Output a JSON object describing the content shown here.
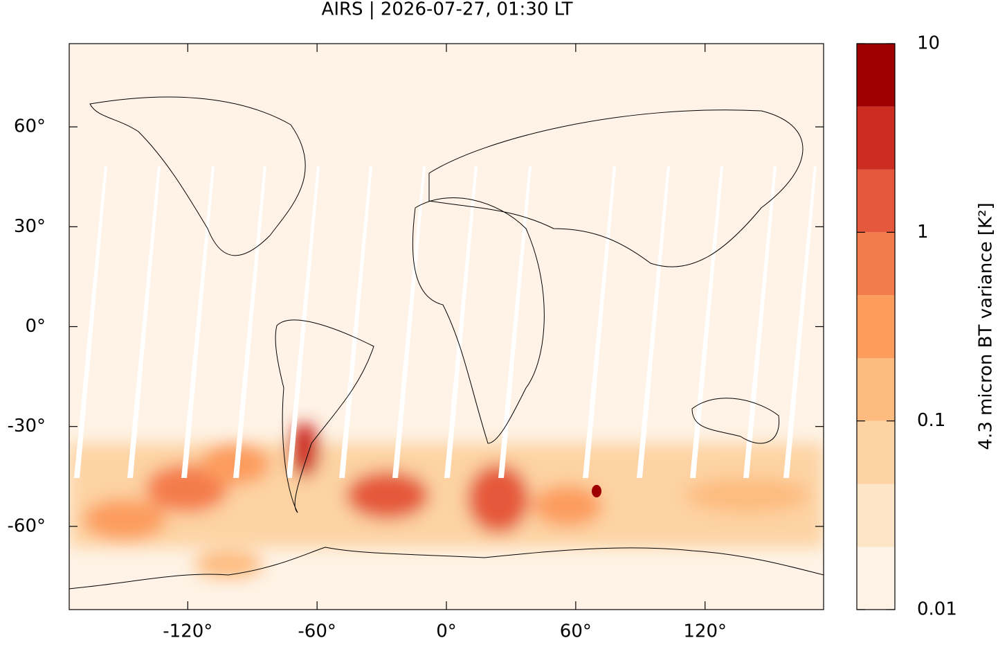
{
  "chart_data": {
    "type": "map",
    "title": "AIRS | 2026-07-27, 01:30 LT",
    "xlim": [
      -175,
      175
    ],
    "ylim": [
      -85,
      85
    ],
    "xticks": [
      {
        "value": -120,
        "label": "-120°"
      },
      {
        "value": -60,
        "label": "-60°"
      },
      {
        "value": 0,
        "label": "0°"
      },
      {
        "value": 60,
        "label": "60°"
      },
      {
        "value": 120,
        "label": "120°"
      }
    ],
    "yticks": [
      {
        "value": -60,
        "label": "-60°"
      },
      {
        "value": -30,
        "label": "-30°"
      },
      {
        "value": 0,
        "label": "0°"
      },
      {
        "value": 30,
        "label": "30°"
      },
      {
        "value": 60,
        "label": "60°"
      }
    ],
    "colorbar": {
      "label": "4.3 micron BT variance [K²]",
      "log": true,
      "levels": [
        0.01,
        0.0215,
        0.0464,
        0.1,
        0.215,
        0.464,
        1,
        2.15,
        4.64,
        10
      ],
      "colors": [
        "#fef3e6",
        "#fde5c8",
        "#fdd3a3",
        "#fdbb7f",
        "#fc9c5d",
        "#f47c4c",
        "#e5583b",
        "#cd2c20",
        "#9e0002"
      ],
      "ticks": [
        0.01,
        0.1,
        1,
        10
      ]
    }
  }
}
